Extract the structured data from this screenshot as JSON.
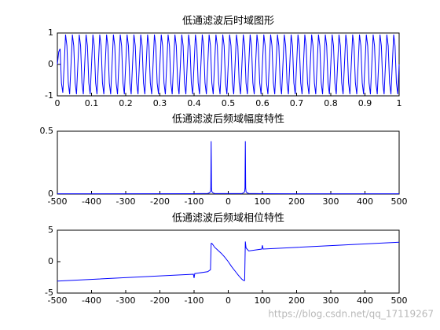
{
  "chart_data": [
    {
      "type": "line",
      "title": "低通滤波后时域图形",
      "color": "#0000ff",
      "xlim": [
        0,
        1
      ],
      "xticks": [
        0,
        0.1,
        0.2,
        0.3,
        0.4,
        0.5,
        0.6,
        0.7,
        0.8,
        0.9,
        1
      ],
      "ylim": [
        -1,
        1
      ],
      "yticks": [
        -1,
        0,
        1
      ],
      "x": [
        0,
        0.004,
        0.008,
        0.012,
        0.016,
        0.02,
        0.024,
        0.028,
        0.032,
        0.036,
        0.04,
        0.044,
        0.048,
        0.052,
        0.056,
        0.06,
        0.064,
        0.068,
        0.072,
        0.076,
        0.08,
        0.084,
        0.088,
        0.092,
        0.096,
        0.1,
        0.104,
        0.108,
        0.112,
        0.116,
        0.12,
        0.124,
        0.128,
        0.132,
        0.136,
        0.14,
        0.144,
        0.148,
        0.152,
        0.156,
        0.16,
        0.164,
        0.168,
        0.172,
        0.176,
        0.18,
        0.184,
        0.188,
        0.192,
        0.196,
        0.2,
        0.204,
        0.208,
        0.212,
        0.216,
        0.22,
        0.224,
        0.228,
        0.232,
        0.236,
        0.24,
        0.244,
        0.248,
        0.252,
        0.256,
        0.26,
        0.264,
        0.268,
        0.272,
        0.276,
        0.28,
        0.284,
        0.288,
        0.292,
        0.296,
        0.3,
        0.304,
        0.308,
        0.312,
        0.316,
        0.32,
        0.324,
        0.328,
        0.332,
        0.336,
        0.34,
        0.344,
        0.348,
        0.352,
        0.356,
        0.36,
        0.364,
        0.368,
        0.372,
        0.376,
        0.38,
        0.384,
        0.388,
        0.392,
        0.396,
        0.4,
        0.404,
        0.408,
        0.412,
        0.416,
        0.42,
        0.424,
        0.428,
        0.432,
        0.436,
        0.44,
        0.444,
        0.448,
        0.452,
        0.456,
        0.46,
        0.464,
        0.468,
        0.472,
        0.476,
        0.48,
        0.484,
        0.488,
        0.492,
        0.496,
        0.5,
        0.504,
        0.508,
        0.512,
        0.516,
        0.52,
        0.524,
        0.528,
        0.532,
        0.536,
        0.54,
        0.544,
        0.548,
        0.552,
        0.556,
        0.56,
        0.564,
        0.568,
        0.572,
        0.576,
        0.58,
        0.584,
        0.588,
        0.592,
        0.596,
        0.6,
        0.604,
        0.608,
        0.612,
        0.616,
        0.62,
        0.624,
        0.628,
        0.632,
        0.636,
        0.64,
        0.644,
        0.648,
        0.652,
        0.656,
        0.66,
        0.664,
        0.668,
        0.672,
        0.676,
        0.68,
        0.684,
        0.688,
        0.692,
        0.696,
        0.7,
        0.704,
        0.708,
        0.712,
        0.716,
        0.72,
        0.724,
        0.728,
        0.732,
        0.736,
        0.74,
        0.744,
        0.748,
        0.752,
        0.756,
        0.76,
        0.764,
        0.768,
        0.772,
        0.776,
        0.78,
        0.784,
        0.788,
        0.792,
        0.796,
        0.8,
        0.804,
        0.808,
        0.812,
        0.816,
        0.82,
        0.824,
        0.828,
        0.832,
        0.836,
        0.84,
        0.844,
        0.848,
        0.852,
        0.856,
        0.86,
        0.864,
        0.868,
        0.872,
        0.876,
        0.88,
        0.884,
        0.888,
        0.892,
        0.896,
        0.9,
        0.904,
        0.908,
        0.912,
        0.916,
        0.92,
        0.924,
        0.928,
        0.932,
        0.936,
        0.94,
        0.944,
        0.948,
        0.952,
        0.956,
        0.96,
        0.964,
        0.968,
        0.972,
        0.976,
        0.98,
        0.984,
        0.988,
        0.992,
        0.996,
        1
      ],
      "values": [
        0,
        0.4,
        0.5,
        -0.6,
        -0.9,
        0,
        0.95,
        0.59,
        -0.59,
        -0.95,
        0,
        0.95,
        0.59,
        -0.59,
        -0.95,
        0,
        0.95,
        0.59,
        -0.59,
        -0.95,
        0,
        0.95,
        0.59,
        -0.59,
        -0.95,
        0,
        0.95,
        0.59,
        -0.59,
        -0.95,
        0,
        0.95,
        0.59,
        -0.59,
        -0.95,
        0,
        0.95,
        0.59,
        -0.59,
        -0.95,
        0,
        0.95,
        0.59,
        -0.59,
        -0.95,
        0,
        0.95,
        0.59,
        -0.59,
        -0.95,
        0,
        0.95,
        0.59,
        -0.59,
        -0.95,
        0,
        0.95,
        0.59,
        -0.59,
        -0.95,
        0,
        0.95,
        0.59,
        -0.59,
        -0.95,
        0,
        0.95,
        0.59,
        -0.59,
        -0.95,
        0,
        0.95,
        0.59,
        -0.59,
        -0.95,
        0,
        0.95,
        0.59,
        -0.59,
        -0.95,
        0,
        0.95,
        0.59,
        -0.59,
        -0.95,
        0,
        0.95,
        0.59,
        -0.59,
        -0.95,
        0,
        0.95,
        0.59,
        -0.59,
        -0.95,
        0,
        0.95,
        0.59,
        -0.59,
        -0.95,
        0,
        0.95,
        0.59,
        -0.59,
        -0.95,
        0,
        0.95,
        0.59,
        -0.59,
        -0.95,
        0,
        0.95,
        0.59,
        -0.59,
        -0.95,
        0,
        0.95,
        0.59,
        -0.59,
        -0.95,
        0,
        0.95,
        0.59,
        -0.59,
        -0.95,
        0,
        0.95,
        0.59,
        -0.59,
        -0.95,
        0,
        0.95,
        0.59,
        -0.59,
        -0.95,
        0,
        0.95,
        0.59,
        -0.59,
        -0.95,
        0,
        0.95,
        0.59,
        -0.59,
        -0.95,
        0,
        0.95,
        0.59,
        -0.59,
        -0.95,
        0,
        0.95,
        0.59,
        -0.59,
        -0.95,
        0,
        0.95,
        0.59,
        -0.59,
        -0.95,
        0,
        0.95,
        0.59,
        -0.59,
        -0.95,
        0,
        0.95,
        0.59,
        -0.59,
        -0.95,
        0,
        0.95,
        0.59,
        -0.59,
        -0.95,
        0,
        0.95,
        0.59,
        -0.59,
        -0.95,
        0,
        0.95,
        0.59,
        -0.59,
        -0.95,
        0,
        0.95,
        0.59,
        -0.59,
        -0.95,
        0,
        0.95,
        0.59,
        -0.59,
        -0.95,
        0,
        0.95,
        0.59,
        -0.59,
        -0.95,
        0,
        0.95,
        0.59,
        -0.59,
        -0.95,
        0,
        0.95,
        0.59,
        -0.59,
        -0.95,
        0,
        0.95,
        0.59,
        -0.59,
        -0.95,
        0,
        0.95,
        0.59,
        -0.59,
        -0.95,
        0,
        0.95,
        0.59,
        -0.59,
        -0.95,
        0,
        0.95,
        0.59,
        -0.59,
        -0.95,
        0,
        0.95,
        0.59,
        -0.59,
        -0.95,
        0,
        0.95,
        0.59,
        -0.59,
        -0.95,
        0,
        0.95,
        0.59,
        -0.59,
        -0.95,
        0,
        0.95,
        0.59,
        -0.59,
        -0.95,
        0
      ]
    },
    {
      "type": "line",
      "title": "低通滤波后频域幅度特性",
      "color": "#0000ff",
      "xlim": [
        -500,
        500
      ],
      "xticks": [
        -500,
        -400,
        -300,
        -200,
        -100,
        0,
        100,
        200,
        300,
        400,
        500
      ],
      "ylim": [
        0,
        0.5
      ],
      "yticks": [
        0,
        0.5
      ],
      "x": [
        -500,
        -100,
        -60,
        -55,
        -52,
        -51,
        -50,
        -49,
        -48,
        -45,
        -40,
        40,
        45,
        48,
        49,
        50,
        51,
        52,
        55,
        60,
        100,
        500
      ],
      "values": [
        0.002,
        0.003,
        0.005,
        0.01,
        0.02,
        0.05,
        0.42,
        0.05,
        0.02,
        0.01,
        0.004,
        0.004,
        0.01,
        0.02,
        0.05,
        0.42,
        0.05,
        0.02,
        0.01,
        0.005,
        0.003,
        0.002
      ]
    },
    {
      "type": "line",
      "title": "低通滤波后频域相位特性",
      "color": "#0000ff",
      "xlim": [
        -500,
        500
      ],
      "xticks": [
        -500,
        -400,
        -300,
        -200,
        -100,
        0,
        100,
        200,
        300,
        400,
        500
      ],
      "ylim": [
        -5,
        5
      ],
      "yticks": [
        -5,
        0,
        5
      ],
      "x": [
        -500,
        -102,
        -100,
        -98,
        -60,
        -55,
        -52,
        -50,
        -48,
        -45,
        -40,
        -30,
        -20,
        -10,
        0,
        10,
        20,
        30,
        40,
        45,
        48,
        50,
        52,
        55,
        60,
        98,
        100,
        102,
        500
      ],
      "values": [
        -3.1,
        -2.0,
        -2.6,
        -1.9,
        -1.6,
        -1.4,
        -1.3,
        2.9,
        2.9,
        2.7,
        2.3,
        1.8,
        1.3,
        0.7,
        0,
        -0.8,
        -1.5,
        -2.2,
        -2.8,
        -3.0,
        -3.0,
        3.2,
        2.2,
        2.0,
        1.7,
        2.0,
        2.6,
        2.0,
        3.1
      ]
    }
  ],
  "watermark": "https://blog.csdn.net/qq_17119267"
}
